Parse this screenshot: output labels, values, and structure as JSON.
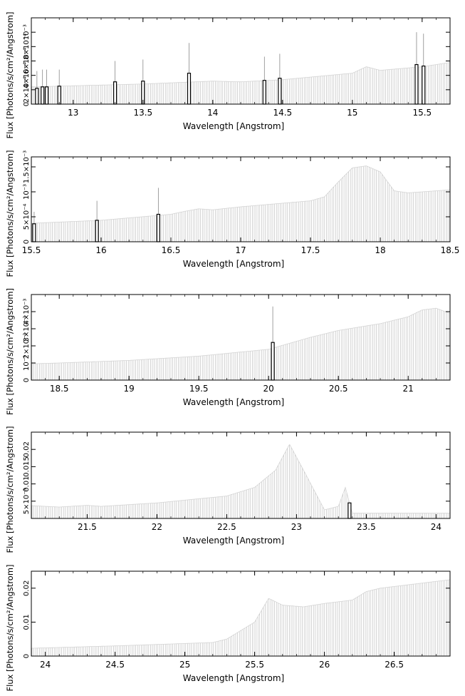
{
  "chart_data": [
    {
      "type": "bar",
      "xlabel": "Wavelength [Angstrom]",
      "ylabel": "Flux [Photons/s/cm²/Angstrom]",
      "xlim": [
        12.7,
        15.7
      ],
      "ylim": [
        0,
        0.0012
      ],
      "xticks": [
        {
          "v": 13,
          "t": "13"
        },
        {
          "v": 13.5,
          "t": "13.5"
        },
        {
          "v": 14,
          "t": "14"
        },
        {
          "v": 14.5,
          "t": "14.5"
        },
        {
          "v": 15,
          "t": "15"
        },
        {
          "v": 15.5,
          "t": "15.5"
        }
      ],
      "yticks": [
        {
          "v": 0,
          "t": "0"
        },
        {
          "v": 0.0002,
          "t": "2×10⁻⁴"
        },
        {
          "v": 0.0004,
          "t": "4×10⁻⁴"
        },
        {
          "v": 0.0006,
          "t": "6×10⁻⁴"
        },
        {
          "v": 0.0008,
          "t": "8×10⁻⁴"
        },
        {
          "v": 0.001,
          "t": "10⁻³"
        }
      ],
      "continuum": [
        [
          12.7,
          0.00024
        ],
        [
          13.0,
          0.000255
        ],
        [
          13.5,
          0.00028
        ],
        [
          14.0,
          0.00032
        ],
        [
          14.2,
          0.00031
        ],
        [
          14.5,
          0.00034
        ],
        [
          15.0,
          0.00043
        ],
        [
          15.1,
          0.00052
        ],
        [
          15.2,
          0.00047
        ],
        [
          15.5,
          0.00052
        ],
        [
          15.7,
          0.00058
        ]
      ],
      "bars": [
        {
          "x": 12.74,
          "y": 0.00022,
          "err": 0.00046
        },
        {
          "x": 12.78,
          "y": 0.00024,
          "err": 0.00048
        },
        {
          "x": 12.81,
          "y": 0.00024,
          "err": 0.00048
        },
        {
          "x": 12.9,
          "y": 0.00025,
          "err": 0.00048
        },
        {
          "x": 13.3,
          "y": 0.00031,
          "err": 0.0006
        },
        {
          "x": 13.5,
          "y": 0.00032,
          "err": 0.00062
        },
        {
          "x": 13.83,
          "y": 0.00043,
          "err": 0.00085
        },
        {
          "x": 14.37,
          "y": 0.00033,
          "err": 0.00066
        },
        {
          "x": 14.48,
          "y": 0.00036,
          "err": 0.0007
        },
        {
          "x": 15.46,
          "y": 0.00055,
          "err": 0.001
        },
        {
          "x": 15.51,
          "y": 0.00053,
          "err": 0.00098
        }
      ]
    },
    {
      "type": "bar",
      "xlabel": "Wavelength [Angstrom]",
      "ylabel": "Flux [Photons/s/cm²/Angstrom]",
      "xlim": [
        15.5,
        18.5
      ],
      "ylim": [
        0,
        0.0017
      ],
      "xticks": [
        {
          "v": 15.5,
          "t": "15.5"
        },
        {
          "v": 16,
          "t": "16"
        },
        {
          "v": 16.5,
          "t": "16.5"
        },
        {
          "v": 17,
          "t": "17"
        },
        {
          "v": 17.5,
          "t": "17.5"
        },
        {
          "v": 18,
          "t": "18"
        },
        {
          "v": 18.5,
          "t": "18.5"
        }
      ],
      "yticks": [
        {
          "v": 0,
          "t": "0"
        },
        {
          "v": 0.0005,
          "t": "5×10⁻⁴"
        },
        {
          "v": 0.001,
          "t": "10⁻³"
        },
        {
          "v": 0.0015,
          "t": "1.5×10⁻³"
        }
      ],
      "continuum": [
        [
          15.5,
          0.00037
        ],
        [
          16.0,
          0.00043
        ],
        [
          16.5,
          0.00055
        ],
        [
          16.6,
          0.00061
        ],
        [
          16.7,
          0.00066
        ],
        [
          16.8,
          0.00064
        ],
        [
          17.0,
          0.0007
        ],
        [
          17.5,
          0.00082
        ],
        [
          17.6,
          0.0009
        ],
        [
          17.7,
          0.0012
        ],
        [
          17.8,
          0.00148
        ],
        [
          17.9,
          0.00152
        ],
        [
          18.0,
          0.0014
        ],
        [
          18.1,
          0.00102
        ],
        [
          18.2,
          0.00098
        ],
        [
          18.5,
          0.00104
        ]
      ],
      "bars": [
        {
          "x": 15.52,
          "y": 0.00036,
          "err": 0.0006
        },
        {
          "x": 15.97,
          "y": 0.00043,
          "err": 0.00082
        },
        {
          "x": 16.41,
          "y": 0.00055,
          "err": 0.00108
        }
      ]
    },
    {
      "type": "bar",
      "xlabel": "Wavelength [Angstrom]",
      "ylabel": "Flux [Photons/s/cm²/Angstrom]",
      "xlim": [
        18.3,
        21.3
      ],
      "ylim": [
        0,
        0.005
      ],
      "xticks": [
        {
          "v": 18.5,
          "t": "18.5"
        },
        {
          "v": 19,
          "t": "19"
        },
        {
          "v": 19.5,
          "t": "19.5"
        },
        {
          "v": 20,
          "t": "20"
        },
        {
          "v": 20.5,
          "t": "20.5"
        },
        {
          "v": 21,
          "t": "21"
        }
      ],
      "yticks": [
        {
          "v": 0,
          "t": "0"
        },
        {
          "v": 0.001,
          "t": "10⁻³"
        },
        {
          "v": 0.002,
          "t": "2×10⁻³"
        },
        {
          "v": 0.003,
          "t": "3×10⁻³"
        },
        {
          "v": 0.004,
          "t": "4×10⁻³"
        }
      ],
      "continuum": [
        [
          18.3,
          0.00095
        ],
        [
          18.5,
          0.001
        ],
        [
          19.0,
          0.00115
        ],
        [
          19.5,
          0.0014
        ],
        [
          20.0,
          0.0018
        ],
        [
          20.3,
          0.0025
        ],
        [
          20.5,
          0.0029
        ],
        [
          20.8,
          0.0033
        ],
        [
          21.0,
          0.0037
        ],
        [
          21.1,
          0.0041
        ],
        [
          21.2,
          0.0042
        ],
        [
          21.3,
          0.0039
        ]
      ],
      "bars": [
        {
          "x": 20.03,
          "y": 0.0022,
          "err": 0.0043
        }
      ]
    },
    {
      "type": "bar",
      "xlabel": "Wavelength [Angstrom]",
      "ylabel": "Flux [Photons/s/cm²/Angstrom]",
      "xlim": [
        21.1,
        24.1
      ],
      "ylim": [
        0,
        0.025
      ],
      "xticks": [
        {
          "v": 21.5,
          "t": "21.5"
        },
        {
          "v": 22,
          "t": "22"
        },
        {
          "v": 22.5,
          "t": "22.5"
        },
        {
          "v": 23,
          "t": "23"
        },
        {
          "v": 23.5,
          "t": "23.5"
        },
        {
          "v": 24,
          "t": "24"
        }
      ],
      "yticks": [
        {
          "v": 0.005,
          "t": "5×10⁻³"
        },
        {
          "v": 0.01,
          "t": "0.01"
        },
        {
          "v": 0.015,
          "t": "0.015"
        },
        {
          "v": 0.02,
          "t": "0.02"
        }
      ],
      "continuum": [
        [
          21.1,
          0.0037
        ],
        [
          21.3,
          0.0033
        ],
        [
          21.5,
          0.0038
        ],
        [
          21.6,
          0.0035
        ],
        [
          22.0,
          0.0045
        ],
        [
          22.5,
          0.0065
        ],
        [
          22.7,
          0.009
        ],
        [
          22.85,
          0.014
        ],
        [
          22.95,
          0.0215
        ],
        [
          23.05,
          0.014
        ],
        [
          23.2,
          0.0025
        ],
        [
          23.3,
          0.0035
        ],
        [
          23.35,
          0.009
        ],
        [
          23.4,
          0.0015
        ],
        [
          24.1,
          0.0015
        ]
      ],
      "bars": [
        {
          "x": 23.38,
          "y": 0.0045,
          "err": 0.0045
        }
      ]
    },
    {
      "type": "bar",
      "xlabel": "Wavelength [Angstrom]",
      "ylabel": "Flux [Photons/s/cm²/Angstrom]",
      "xlim": [
        23.9,
        26.9
      ],
      "ylim": [
        0,
        0.025
      ],
      "xticks": [
        {
          "v": 24,
          "t": "24"
        },
        {
          "v": 24.5,
          "t": "24.5"
        },
        {
          "v": 25,
          "t": "25"
        },
        {
          "v": 25.5,
          "t": "25.5"
        },
        {
          "v": 26,
          "t": "26"
        },
        {
          "v": 26.5,
          "t": "26.5"
        }
      ],
      "yticks": [
        {
          "v": 0,
          "t": "0"
        },
        {
          "v": 0.01,
          "t": "0.01"
        },
        {
          "v": 0.02,
          "t": "0.02"
        }
      ],
      "continuum": [
        [
          23.9,
          0.0023
        ],
        [
          24.5,
          0.003
        ],
        [
          25.0,
          0.0037
        ],
        [
          25.2,
          0.004
        ],
        [
          25.3,
          0.005
        ],
        [
          25.5,
          0.01
        ],
        [
          25.6,
          0.017
        ],
        [
          25.7,
          0.015
        ],
        [
          25.85,
          0.0145
        ],
        [
          26.0,
          0.0155
        ],
        [
          26.2,
          0.0165
        ],
        [
          26.3,
          0.019
        ],
        [
          26.4,
          0.02
        ],
        [
          26.6,
          0.021
        ],
        [
          26.9,
          0.0225
        ]
      ],
      "bars": []
    }
  ]
}
